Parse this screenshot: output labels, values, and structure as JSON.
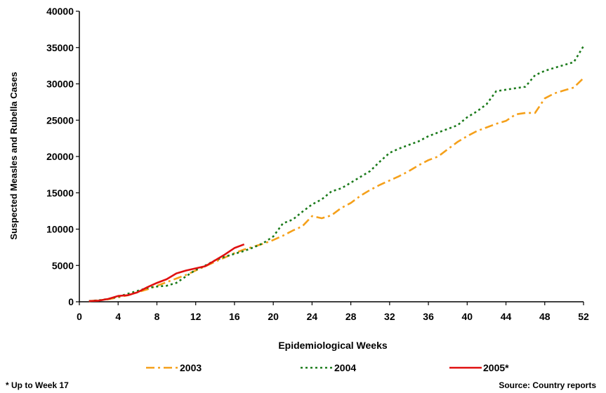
{
  "chart_data": {
    "type": "line",
    "title": "",
    "xlabel": "Epidemiological Weeks",
    "ylabel": "Suspected Measles and Rubella Cases",
    "xlim": [
      0,
      52
    ],
    "ylim": [
      0,
      40000
    ],
    "x_ticks": [
      0,
      4,
      8,
      12,
      16,
      20,
      24,
      28,
      32,
      36,
      40,
      44,
      48,
      52
    ],
    "y_ticks": [
      0,
      5000,
      10000,
      15000,
      20000,
      25000,
      30000,
      35000,
      40000
    ],
    "grid": false,
    "legend_position": "bottom",
    "series": [
      {
        "name": "2003",
        "color": "#f5a01a",
        "dash": "dash-dot",
        "x": [
          1,
          2,
          3,
          4,
          5,
          6,
          7,
          8,
          9,
          10,
          11,
          12,
          13,
          14,
          15,
          16,
          17,
          18,
          19,
          20,
          21,
          22,
          23,
          24,
          25,
          26,
          27,
          28,
          29,
          30,
          31,
          32,
          33,
          34,
          35,
          36,
          37,
          38,
          39,
          40,
          41,
          42,
          43,
          44,
          45,
          46,
          47,
          48,
          49,
          50,
          51,
          52
        ],
        "y": [
          100,
          200,
          350,
          600,
          900,
          1300,
          1700,
          2200,
          2700,
          3200,
          3700,
          4300,
          4900,
          5500,
          6100,
          6700,
          7200,
          7600,
          8000,
          8500,
          9100,
          9800,
          10400,
          11800,
          11500,
          11900,
          12900,
          13600,
          14600,
          15400,
          16100,
          16700,
          17300,
          18000,
          18800,
          19500,
          20000,
          21000,
          22000,
          22800,
          23500,
          24000,
          24500,
          24900,
          25800,
          26000,
          26000,
          28000,
          28700,
          29100,
          29500,
          30800
        ]
      },
      {
        "name": "2004",
        "color": "#1a7a1a",
        "dash": "dotted",
        "x": [
          1,
          2,
          3,
          4,
          5,
          6,
          7,
          8,
          9,
          10,
          11,
          12,
          13,
          14,
          15,
          16,
          17,
          18,
          19,
          20,
          21,
          22,
          23,
          24,
          25,
          26,
          27,
          28,
          29,
          30,
          31,
          32,
          33,
          34,
          35,
          36,
          37,
          38,
          39,
          40,
          41,
          42,
          43,
          44,
          45,
          46,
          47,
          48,
          49,
          50,
          51,
          52
        ],
        "y": [
          100,
          200,
          400,
          700,
          1100,
          1500,
          1900,
          2100,
          2200,
          2600,
          3500,
          4400,
          5000,
          5700,
          6200,
          6600,
          7000,
          7500,
          8100,
          9000,
          10800,
          11300,
          12400,
          13400,
          14100,
          15200,
          15600,
          16400,
          17200,
          18000,
          19300,
          20500,
          21100,
          21600,
          22100,
          22800,
          23300,
          23800,
          24300,
          25400,
          26200,
          27200,
          29000,
          29200,
          29400,
          29600,
          31200,
          31800,
          32200,
          32600,
          33000,
          35200
        ]
      },
      {
        "name": "2005*",
        "color": "#e01010",
        "dash": "solid",
        "x": [
          1,
          2,
          3,
          4,
          5,
          6,
          7,
          8,
          9,
          10,
          11,
          12,
          13,
          14,
          15,
          16,
          17
        ],
        "y": [
          100,
          150,
          400,
          800,
          900,
          1300,
          2000,
          2600,
          3100,
          3900,
          4300,
          4600,
          4900,
          5700,
          6500,
          7400,
          7900
        ]
      }
    ]
  },
  "footnotes": {
    "left": "* Up to Week 17",
    "right": "Source: Country reports"
  }
}
